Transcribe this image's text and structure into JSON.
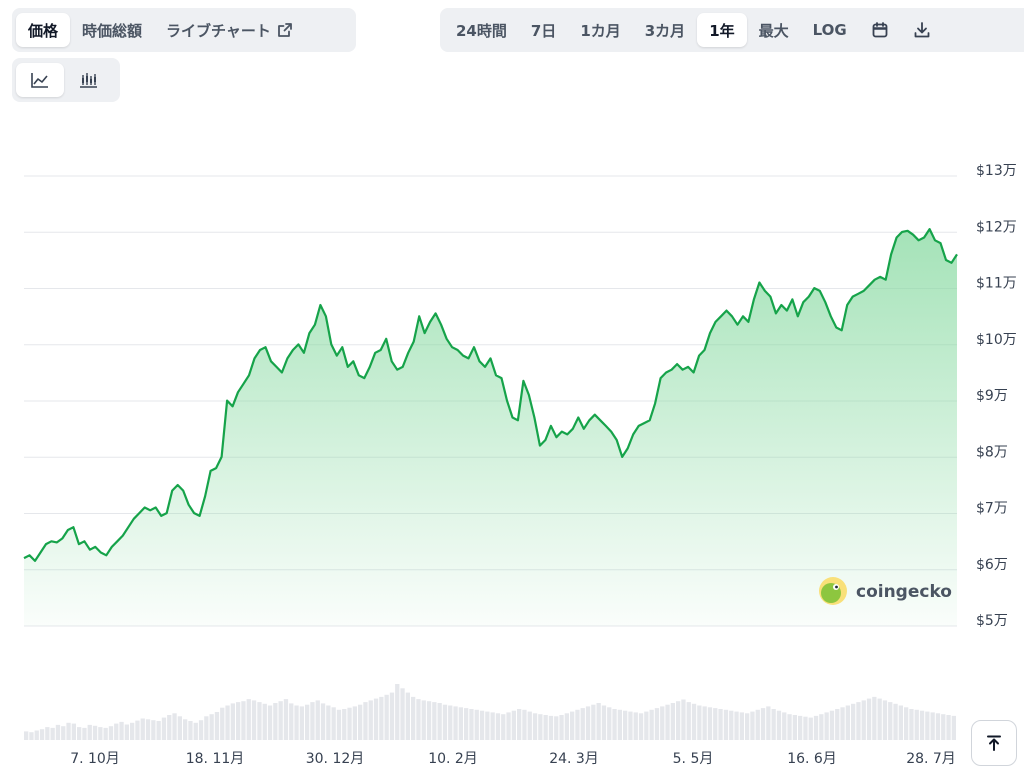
{
  "toolbar": {
    "type_tabs": [
      {
        "label": "価格",
        "active": true
      },
      {
        "label": "時価総額",
        "active": false
      },
      {
        "label": "ライブチャート",
        "active": false,
        "icon": "external-link-icon"
      }
    ],
    "range_tabs": [
      {
        "label": "24時間",
        "active": false
      },
      {
        "label": "7日",
        "active": false
      },
      {
        "label": "1カ月",
        "active": false
      },
      {
        "label": "3カ月",
        "active": false
      },
      {
        "label": "1年",
        "active": true
      },
      {
        "label": "最大",
        "active": false
      },
      {
        "label": "LOG",
        "active": false
      }
    ],
    "range_icons": [
      "calendar-icon",
      "download-icon"
    ],
    "style_icons": [
      {
        "icon": "line-chart-icon",
        "active": true
      },
      {
        "icon": "candlestick-chart-icon",
        "active": false
      }
    ]
  },
  "watermark": {
    "text": "coingecko",
    "icon": "coingecko-logo-icon"
  },
  "colors": {
    "line": "#16a34a",
    "fill": "#86d9a0",
    "grid": "#e5e7eb",
    "volume": "#e5e7eb"
  },
  "chart_data": {
    "type": "area",
    "ylim": [
      50000,
      130000
    ],
    "y_ticks": [
      "$13万",
      "$12万",
      "$11万",
      "$10万",
      "$9万",
      "$8万",
      "$7万",
      "$6万",
      "$5万"
    ],
    "y_tick_values": [
      130000,
      120000,
      110000,
      100000,
      90000,
      80000,
      70000,
      60000,
      50000
    ],
    "x_ticks": [
      "7. 10月",
      "18. 11月",
      "30. 12月",
      "10. 2月",
      "24. 3月",
      "5. 5月",
      "16. 6月",
      "28. 7月"
    ],
    "series": [
      {
        "values": [
          61000,
          61500,
          60500,
          62000,
          63500,
          64000,
          63800,
          64500,
          66000,
          66500,
          63500,
          64000,
          62500,
          63000,
          62000,
          61500,
          63000,
          64000,
          65000,
          66500,
          68000,
          69000,
          70000,
          69500,
          70000,
          68500,
          69000,
          73000,
          74000,
          73000,
          70500,
          69000,
          68500,
          72000,
          76500,
          77000,
          79000,
          89000,
          88000,
          90500,
          92000,
          93500,
          96500,
          98000,
          98500,
          96000,
          95000,
          94000,
          96500,
          98000,
          99000,
          97500,
          101000,
          102500,
          106000,
          104000,
          99000,
          97000,
          98500,
          95000,
          96000,
          93500,
          93000,
          95000,
          97500,
          98000,
          100000,
          96000,
          94500,
          95000,
          97500,
          99500,
          104000,
          101000,
          103000,
          104500,
          102500,
          100000,
          98500,
          98000,
          97000,
          96500,
          98500,
          96000,
          95000,
          96500,
          93500,
          93000,
          89000,
          86000,
          85500,
          92500,
          90000,
          86000,
          81000,
          82000,
          84500,
          82500,
          83500,
          83000,
          84000,
          86000,
          84000,
          85500,
          86500,
          85500,
          84500,
          83500,
          82000,
          79000,
          80500,
          83000,
          84500,
          85000,
          85500,
          88500,
          93000,
          94000,
          94500,
          95500,
          94500,
          95000,
          94000,
          97000,
          98000,
          101000,
          103000,
          104000,
          105000,
          104000,
          102500,
          104000,
          103000,
          107000,
          110000,
          108500,
          107500,
          104500,
          106000,
          105000,
          107000,
          104000,
          106500,
          107500,
          109000,
          108500,
          106500,
          104000,
          102000,
          101500,
          106000,
          107500,
          108000,
          108500,
          109500,
          110500,
          111000,
          110500,
          115000,
          118000,
          119000,
          119200,
          118500,
          117500,
          118000,
          119500,
          117500,
          117000,
          114000,
          113500,
          115000
        ]
      }
    ],
    "volume": [
      20,
      18,
      22,
      25,
      30,
      28,
      35,
      32,
      40,
      38,
      30,
      28,
      35,
      33,
      30,
      28,
      32,
      38,
      42,
      36,
      40,
      45,
      50,
      48,
      46,
      44,
      52,
      58,
      62,
      55,
      48,
      44,
      40,
      46,
      55,
      60,
      65,
      75,
      80,
      85,
      88,
      90,
      95,
      92,
      88,
      84,
      80,
      86,
      90,
      95,
      85,
      80,
      78,
      82,
      88,
      92,
      85,
      80,
      76,
      70,
      72,
      75,
      78,
      82,
      88,
      92,
      96,
      100,
      105,
      110,
      130,
      120,
      110,
      100,
      95,
      92,
      90,
      88,
      86,
      82,
      80,
      78,
      76,
      74,
      72,
      70,
      68,
      66,
      64,
      62,
      60,
      64,
      68,
      72,
      70,
      66,
      62,
      60,
      58,
      56,
      55,
      58,
      62,
      66,
      70,
      74,
      78,
      82,
      86,
      80,
      76,
      72,
      70,
      68,
      66,
      64,
      62,
      66,
      70,
      74,
      78,
      82,
      86,
      90,
      94,
      88,
      84,
      80,
      78,
      76,
      74,
      72,
      70,
      68,
      66,
      64,
      62,
      66,
      70,
      74,
      78,
      72,
      68,
      64,
      60,
      58,
      56,
      54,
      52,
      56,
      60,
      64,
      68,
      72,
      76,
      80,
      84,
      88,
      92,
      96,
      100,
      96,
      92,
      88,
      84,
      80,
      76,
      72,
      70,
      68,
      66,
      64,
      62,
      60,
      58,
      56
    ]
  }
}
